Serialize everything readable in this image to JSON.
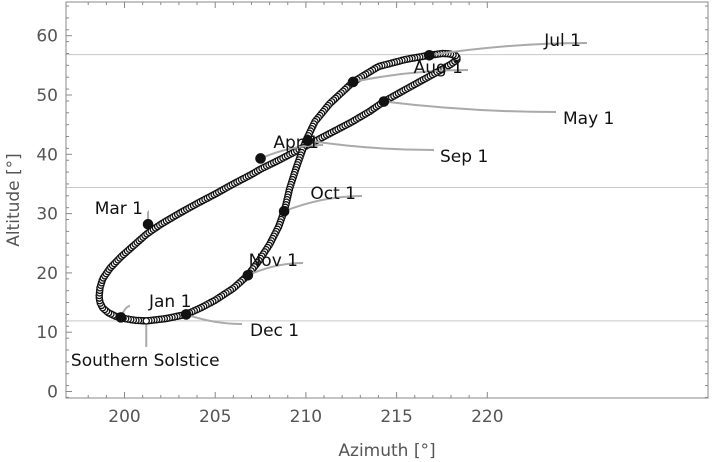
{
  "chart_data": {
    "type": "scatter",
    "xlabel": "Azimuth [°]",
    "ylabel": "Altitude [°]",
    "xlim": [
      198,
      220
    ],
    "ylim": [
      -1,
      65
    ],
    "xticks": [
      200,
      205,
      210,
      215,
      220
    ],
    "yticks": [
      0,
      10,
      20,
      30,
      40,
      50,
      60
    ],
    "reference_lines_y": [
      56.8,
      34.4,
      11.9
    ],
    "grid": false,
    "marker_style": "open circles along the analemma, filled circles at month starts",
    "analemma_path": [
      [
        201.2,
        11.9
      ],
      [
        200.6,
        12.0
      ],
      [
        200.0,
        12.3
      ],
      [
        199.5,
        12.7
      ],
      [
        199.1,
        13.3
      ],
      [
        198.8,
        14.1
      ],
      [
        198.65,
        15.0
      ],
      [
        198.6,
        16.0
      ],
      [
        198.65,
        17.5
      ],
      [
        198.8,
        19.0
      ],
      [
        199.2,
        20.8
      ],
      [
        199.8,
        22.7
      ],
      [
        200.5,
        24.6
      ],
      [
        201.2,
        26.5
      ],
      [
        202.0,
        28.2
      ],
      [
        203.0,
        30.0
      ],
      [
        204.0,
        31.7
      ],
      [
        205.0,
        33.3
      ],
      [
        206.0,
        35.0
      ],
      [
        207.0,
        36.6
      ],
      [
        207.5,
        37.5
      ],
      [
        208.5,
        39.0
      ],
      [
        209.5,
        40.6
      ],
      [
        210.5,
        42.2
      ],
      [
        211.5,
        43.8
      ],
      [
        212.5,
        45.4
      ],
      [
        213.5,
        47.2
      ],
      [
        214.3,
        48.9
      ],
      [
        215.3,
        50.6
      ],
      [
        216.3,
        52.3
      ],
      [
        217.2,
        53.8
      ],
      [
        218.0,
        55.2
      ],
      [
        218.35,
        56.0
      ],
      [
        218.3,
        56.6
      ],
      [
        217.9,
        56.95
      ],
      [
        217.5,
        57.0
      ],
      [
        216.8,
        56.7
      ],
      [
        215.5,
        56.0
      ],
      [
        214.0,
        54.8
      ],
      [
        212.6,
        52.2
      ],
      [
        211.3,
        48.5
      ],
      [
        210.5,
        45.5
      ],
      [
        210.0,
        42.3
      ],
      [
        209.5,
        38.0
      ],
      [
        209.1,
        34.2
      ],
      [
        208.9,
        31.5
      ],
      [
        208.8,
        30.4
      ],
      [
        208.5,
        27.8
      ],
      [
        208.0,
        24.8
      ],
      [
        207.4,
        22.0
      ],
      [
        206.8,
        19.6
      ],
      [
        206.0,
        17.4
      ],
      [
        205.0,
        15.4
      ],
      [
        204.2,
        14.1
      ],
      [
        203.4,
        13.0
      ],
      [
        202.3,
        12.3
      ],
      [
        201.2,
        11.9
      ]
    ],
    "month_points": [
      {
        "label": "Jan 1",
        "azimuth": 199.8,
        "altitude": 12.5
      },
      {
        "label": "Mar 1",
        "azimuth": 201.3,
        "altitude": 28.2
      },
      {
        "label": "Apr 1",
        "azimuth": 207.5,
        "altitude": 39.3
      },
      {
        "label": "May 1",
        "azimuth": 214.3,
        "altitude": 48.9
      },
      {
        "label": "Jul 1",
        "azimuth": 216.8,
        "altitude": 56.7
      },
      {
        "label": "Aug 1",
        "azimuth": 212.6,
        "altitude": 52.2
      },
      {
        "label": "Sep 1",
        "azimuth": 210.1,
        "altitude": 42.3
      },
      {
        "label": "Oct 1",
        "azimuth": 208.8,
        "altitude": 30.4
      },
      {
        "label": "Nov 1",
        "azimuth": 206.8,
        "altitude": 19.6
      },
      {
        "label": "Dec 1",
        "azimuth": 203.4,
        "altitude": 13.0
      }
    ],
    "solstice_point": {
      "label": "Southern Solstice",
      "azimuth": 201.2,
      "altitude": 11.9
    }
  }
}
